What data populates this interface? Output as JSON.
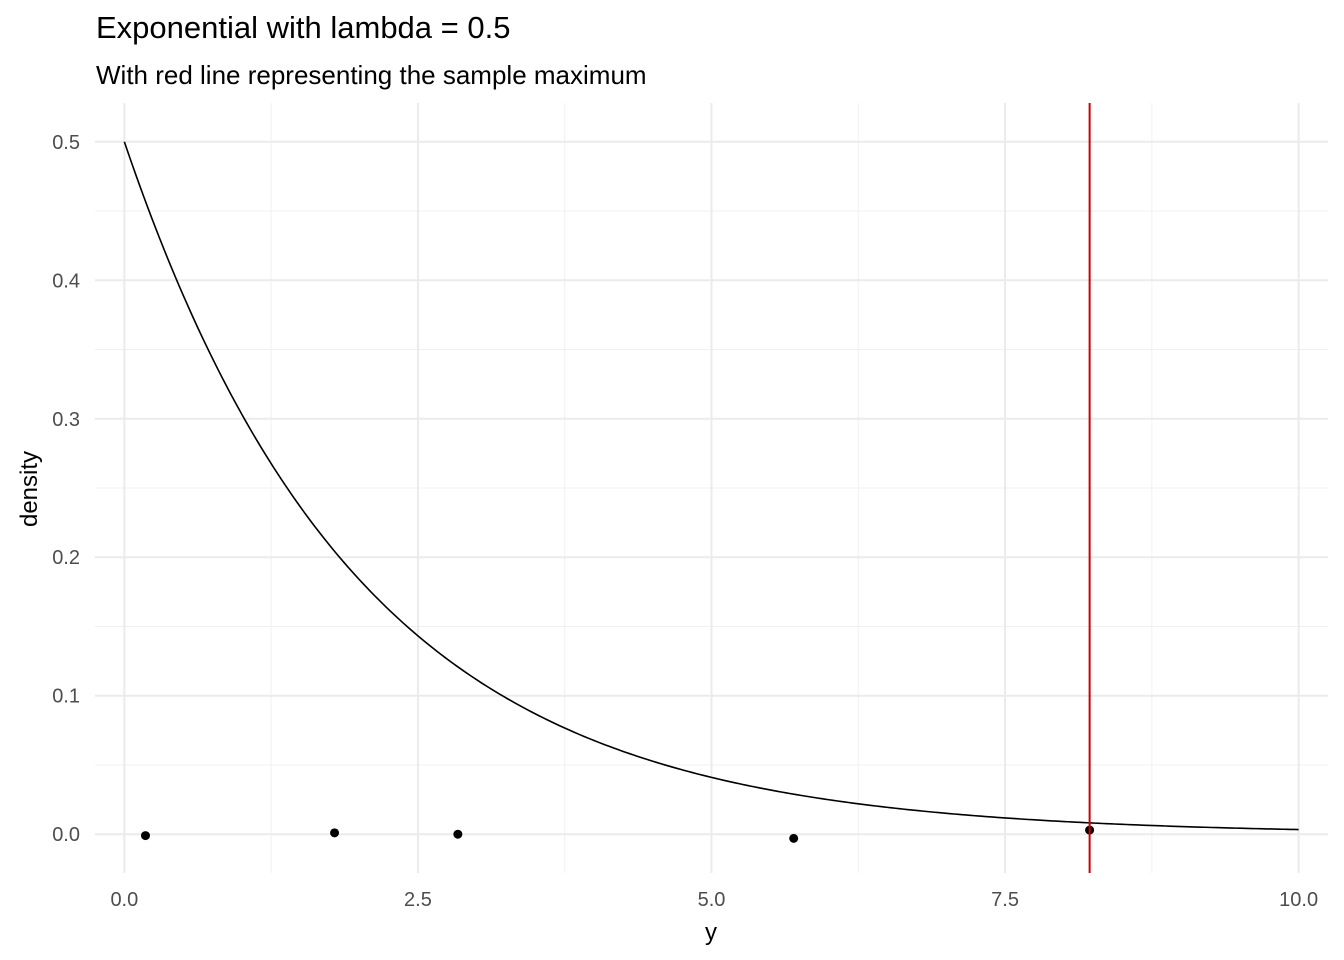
{
  "chart_data": {
    "type": "line",
    "title": "Exponential with lambda = 0.5",
    "subtitle": "With red line representing the sample maximum",
    "xlabel": "y",
    "ylabel": "density",
    "xlim": [
      -0.25,
      10.25
    ],
    "ylim": [
      -0.028,
      0.528
    ],
    "x_ticks": [
      0.0,
      2.5,
      5.0,
      7.5,
      10.0
    ],
    "x_tick_labels": [
      "0.0",
      "2.5",
      "5.0",
      "7.5",
      "10.0"
    ],
    "y_ticks": [
      0.0,
      0.1,
      0.2,
      0.3,
      0.4,
      0.5
    ],
    "y_tick_labels": [
      "0.0",
      "0.1",
      "0.2",
      "0.3",
      "0.4",
      "0.5"
    ],
    "grid": true,
    "curve": {
      "function": "exponential_density",
      "lambda": 0.5,
      "x_range": [
        0,
        10
      ],
      "color": "#000000"
    },
    "sample_points": [
      {
        "x": 0.18,
        "y": -0.001
      },
      {
        "x": 1.79,
        "y": 0.001
      },
      {
        "x": 2.84,
        "y": 0.0
      },
      {
        "x": 5.7,
        "y": -0.003
      },
      {
        "x": 8.22,
        "y": 0.003
      }
    ],
    "sample_maximum": {
      "x": 8.22,
      "color": "#cc0000"
    }
  }
}
